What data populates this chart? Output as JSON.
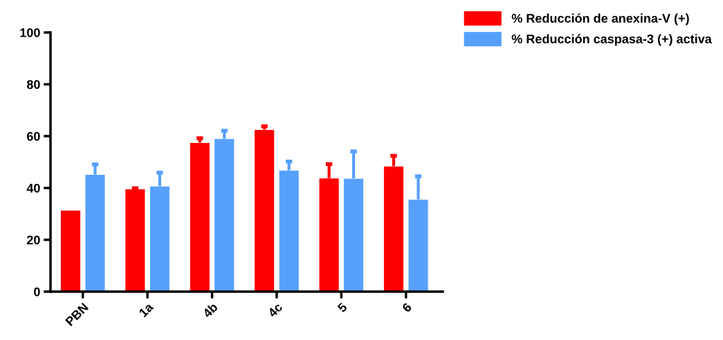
{
  "chart_data": {
    "type": "bar",
    "categories": [
      "PBN",
      "1a",
      "4b",
      "4c",
      "5",
      "6"
    ],
    "series": [
      {
        "name": "% Reducción de anexina-V (+)",
        "color": "#ff0000",
        "values": [
          31.4,
          39.6,
          57.5,
          62.5,
          43.8,
          48.4
        ],
        "errors": [
          null,
          [
            39.6,
            39.9
          ],
          [
            57.5,
            59.2
          ],
          [
            62.5,
            63.8
          ],
          [
            43.8,
            49.2
          ],
          [
            48.4,
            52.4
          ]
        ]
      },
      {
        "name": "% Reducción caspasa-3 (+) activa",
        "color": "#56a0fc",
        "values": [
          45.2,
          40.7,
          59.0,
          46.8,
          43.7,
          35.6
        ],
        "errors": [
          [
            45.2,
            49.1
          ],
          [
            40.7,
            45.9
          ],
          [
            59.0,
            62.1
          ],
          [
            46.8,
            50.2
          ],
          [
            43.7,
            54.1
          ],
          [
            35.6,
            44.5
          ]
        ]
      }
    ],
    "ylim": [
      0,
      100
    ],
    "yticks": [
      0,
      20,
      40,
      60,
      80,
      100
    ],
    "grid": false,
    "legend": "top right"
  }
}
